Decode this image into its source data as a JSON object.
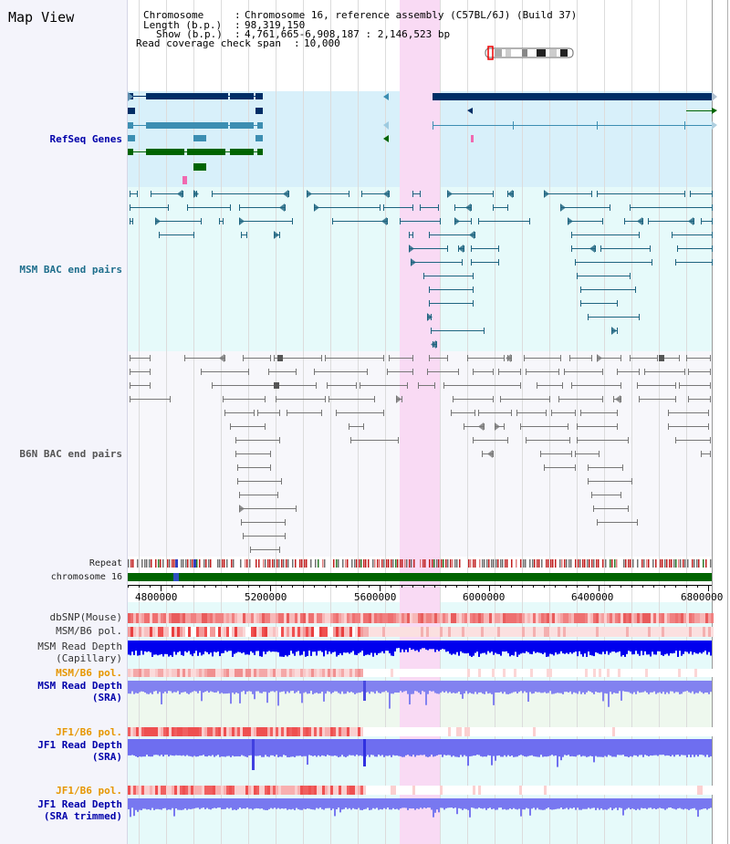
{
  "title": "Map View",
  "info": {
    "chromosome_key": "Chromosome",
    "chromosome_val": "Chromosome 16, reference assembly (C57BL/6J) (Build 37)",
    "length_key": "Length (b.p.)",
    "length_val": "98,319,150",
    "show_key": "Show (b.p.)",
    "show_val": "4,761,665-6,908,187 : 2,146,523 bp",
    "span_key": "Read coverage check span",
    "span_val": "10,000"
  },
  "tracks": {
    "refseq": "RefSeq Genes",
    "msm_bac": "MSM BAC end pairs",
    "b6n_bac": "B6N BAC end pairs",
    "repeat": "Repeat",
    "chromosome": "chromosome 16",
    "dbsnp": "dbSNP(Mouse)",
    "msm_pol": "MSM/B6 pol.",
    "msm_cap": "MSM Read Depth\n(Capillary)",
    "msm_pol2": "MSM/B6 pol.",
    "msm_sra": "MSM Read Depth\n(SRA)",
    "jf1_pol": "JF1/B6 pol.",
    "jf1_sra": "JF1 Read Depth\n(SRA)",
    "jf1_pol2": "JF1/B6 pol.",
    "jf1_trim": "JF1 Read Depth\n(SRA trimmed)"
  },
  "axis": {
    "ticks": [
      "4800000",
      "5200000",
      "5600000",
      "6000000",
      "6400000",
      "6800000"
    ]
  },
  "colors": {
    "highlight": "#f9d9f3",
    "cyan_bg": "#e6fafa",
    "refseq_bg": "#d8f0fa",
    "navy": "#002e66",
    "steel": "#3c8eb2",
    "green": "#006400",
    "bac_teal": "#1e6480",
    "bac_gray": "#777777",
    "label_blue": "#0000aa",
    "label_teal": "#1e6e8c",
    "label_orange": "#e69600",
    "depth_blue": "#0000ee",
    "depth_lav": "#8282f0"
  }
}
